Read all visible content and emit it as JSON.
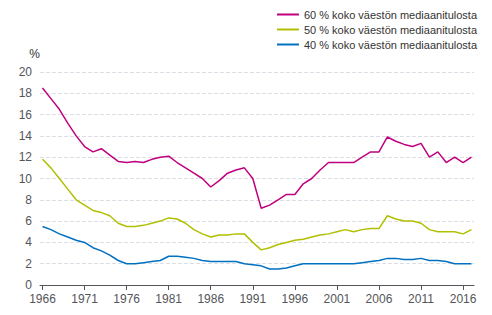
{
  "chart_data": {
    "type": "line",
    "ylabel": "%",
    "x": [
      1966,
      1967,
      1968,
      1969,
      1970,
      1971,
      1972,
      1973,
      1974,
      1975,
      1976,
      1977,
      1978,
      1979,
      1980,
      1981,
      1982,
      1983,
      1984,
      1985,
      1986,
      1987,
      1988,
      1989,
      1990,
      1991,
      1992,
      1993,
      1994,
      1995,
      1996,
      1997,
      1998,
      1999,
      2000,
      2001,
      2002,
      2003,
      2004,
      2005,
      2006,
      2007,
      2008,
      2009,
      2010,
      2011,
      2012,
      2013,
      2014,
      2015,
      2016,
      2017
    ],
    "series": [
      {
        "name": "60 % koko väestön mediaanitulosta",
        "color": "#c0007f",
        "values": [
          18.5,
          17.5,
          16.5,
          15.2,
          14.0,
          13.0,
          12.5,
          12.8,
          12.2,
          11.6,
          11.5,
          11.6,
          11.5,
          11.8,
          12.0,
          12.1,
          11.5,
          11.0,
          10.5,
          10.0,
          9.2,
          9.8,
          10.5,
          10.8,
          11.0,
          10.0,
          7.2,
          7.5,
          8.0,
          8.5,
          8.5,
          9.5,
          10.0,
          10.8,
          11.5,
          11.5,
          11.5,
          11.5,
          12.0,
          12.5,
          12.5,
          13.9,
          13.5,
          13.2,
          13.0,
          13.3,
          12.0,
          12.5,
          11.5,
          12.0,
          11.5,
          12.0
        ]
      },
      {
        "name": "50 % koko väestön mediaanitulosta",
        "color": "#b0c000",
        "values": [
          11.8,
          11.0,
          10.0,
          9.0,
          8.0,
          7.5,
          7.0,
          6.8,
          6.5,
          5.8,
          5.5,
          5.5,
          5.6,
          5.8,
          6.0,
          6.3,
          6.2,
          5.8,
          5.2,
          4.8,
          4.5,
          4.7,
          4.7,
          4.8,
          4.8,
          4.0,
          3.3,
          3.5,
          3.8,
          4.0,
          4.2,
          4.3,
          4.5,
          4.7,
          4.8,
          5.0,
          5.2,
          5.0,
          5.2,
          5.3,
          5.3,
          6.5,
          6.2,
          6.0,
          6.0,
          5.8,
          5.2,
          5.0,
          5.0,
          5.0,
          4.8,
          5.2
        ]
      },
      {
        "name": "40 % koko väestön mediaanitulosta",
        "color": "#0070c0",
        "values": [
          5.5,
          5.2,
          4.8,
          4.5,
          4.2,
          4.0,
          3.5,
          3.2,
          2.8,
          2.3,
          2.0,
          2.0,
          2.1,
          2.2,
          2.3,
          2.7,
          2.7,
          2.6,
          2.5,
          2.3,
          2.2,
          2.2,
          2.2,
          2.2,
          2.0,
          1.9,
          1.8,
          1.5,
          1.5,
          1.6,
          1.8,
          2.0,
          2.0,
          2.0,
          2.0,
          2.0,
          2.0,
          2.0,
          2.1,
          2.2,
          2.3,
          2.5,
          2.5,
          2.4,
          2.4,
          2.5,
          2.3,
          2.3,
          2.2,
          2.0,
          2.0,
          2.0
        ]
      }
    ],
    "xlim": [
      1965.7,
      2017.3
    ],
    "xticks": [
      1966,
      1971,
      1976,
      1981,
      1986,
      1991,
      1996,
      2001,
      2006,
      2011,
      2016
    ],
    "ylim": [
      0,
      20
    ],
    "yticks": [
      0,
      2,
      4,
      6,
      8,
      10,
      12,
      14,
      16,
      18,
      20
    ],
    "grid": true,
    "legend": "upper right"
  }
}
